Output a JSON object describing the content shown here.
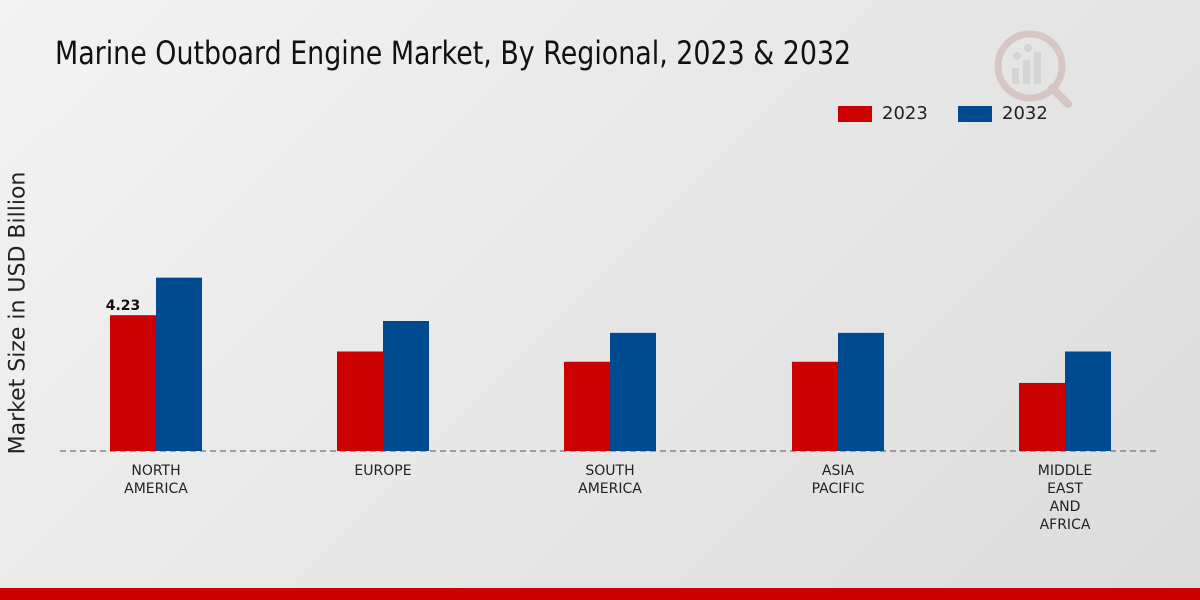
{
  "chart_data": {
    "type": "bar",
    "title": "Marine Outboard Engine Market, By Regional, 2023 & 2032",
    "ylabel": "Market Size in USD Billion",
    "xlabel": "",
    "categories": [
      "NORTH\nAMERICA",
      "EUROPE",
      "SOUTH\nAMERICA",
      "ASIA\nPACIFIC",
      "MIDDLE\nEAST\nAND\nAFRICA"
    ],
    "series": [
      {
        "name": "2023",
        "color": "#cc0000",
        "values": [
          4.23,
          3.1,
          2.78,
          2.78,
          2.12
        ]
      },
      {
        "name": "2032",
        "color": "#004a8f",
        "values": [
          5.4,
          4.05,
          3.68,
          3.68,
          3.1
        ]
      }
    ],
    "data_labels": [
      {
        "series": "2023",
        "category_index": 0,
        "text": "4.23"
      }
    ],
    "ylim": [
      0,
      10
    ],
    "grid": false,
    "legend_position": "top-right"
  },
  "colors": {
    "accent_red": "#cc0000",
    "accent_blue": "#004a8f"
  },
  "logo_icon": "market-research-logo-icon"
}
